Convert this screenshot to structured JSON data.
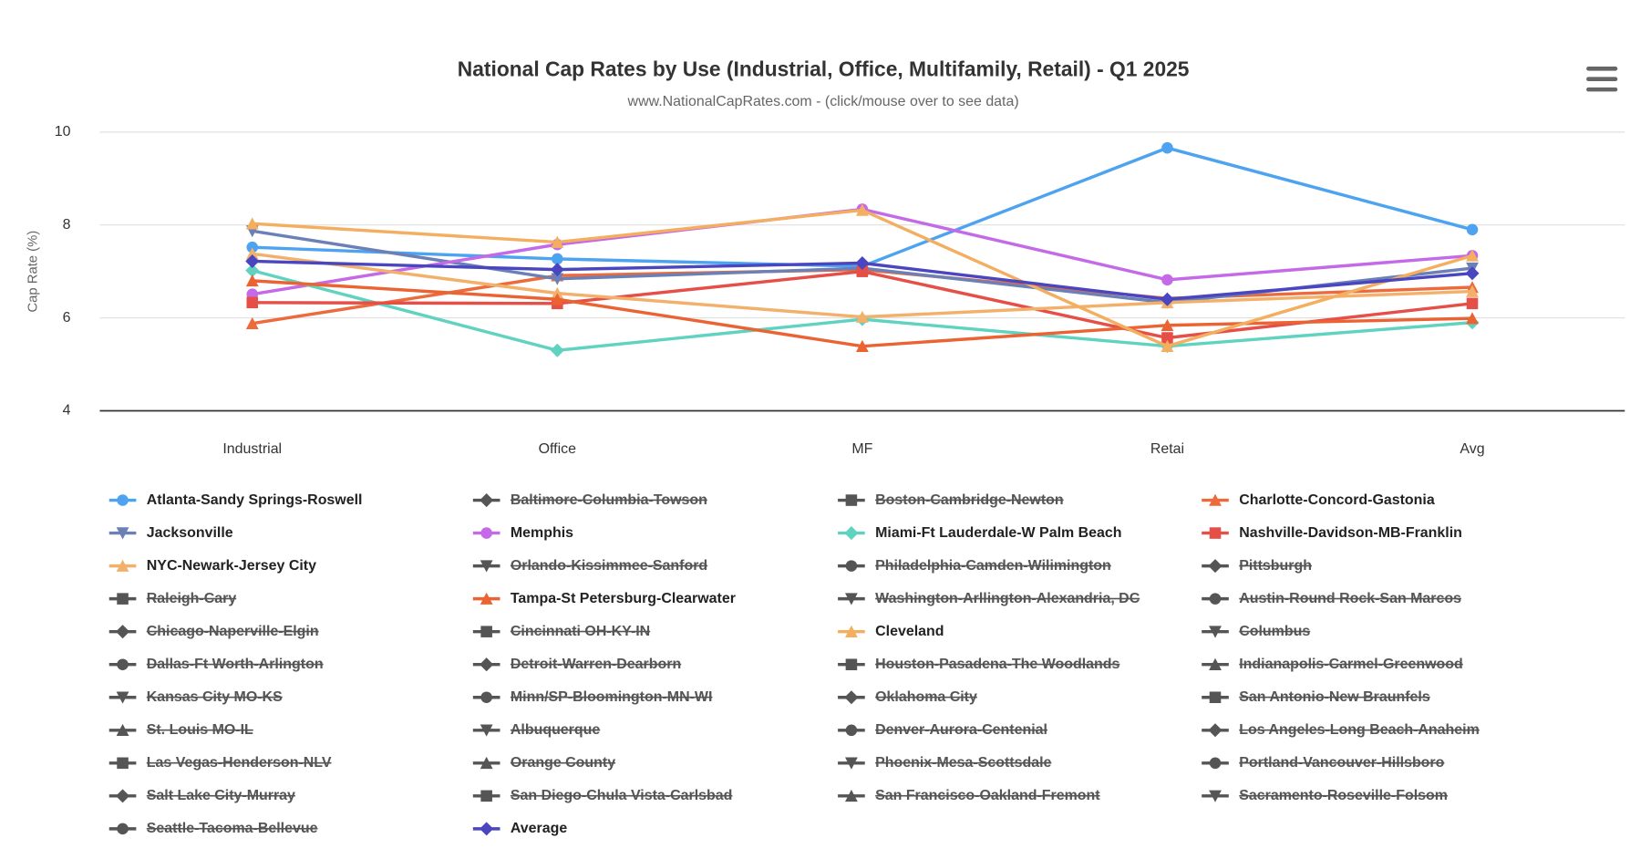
{
  "chart_data": {
    "type": "line",
    "title": "National Cap Rates by Use (Industrial, Office, Multifamily, Retail) - Q1 2025",
    "subtitle": "www.NationalCapRates.com - (click/mouse over to see data)",
    "y_label": "Cap Rate (%)",
    "categories": [
      "Industrial",
      "Office",
      "MF",
      "Retai",
      "Avg"
    ],
    "ylim": [
      4,
      10
    ],
    "yticks": [
      4,
      6,
      8,
      10
    ],
    "grid": true,
    "hidden_color": "#555555",
    "series": [
      {
        "name": "Atlanta-Sandy Springs-Roswell",
        "color": "#4da3f0",
        "values": [
          7.52,
          7.27,
          7.11,
          9.66,
          7.9
        ]
      },
      {
        "name": "Baltimore-Columbia-Towson",
        "visible": false
      },
      {
        "name": "Boston-Cambridge-Newton",
        "visible": false
      },
      {
        "name": "Charlotte-Concord-Gastonia",
        "color": "#ec6a3c",
        "values": [
          5.88,
          6.91,
          7.04,
          6.42,
          6.66
        ]
      },
      {
        "name": "Jacksonville",
        "color": "#6b80b6",
        "values": [
          7.87,
          6.84,
          7.07,
          6.33,
          7.07
        ]
      },
      {
        "name": "Memphis",
        "color": "#c46ae8",
        "values": [
          6.51,
          7.58,
          8.34,
          6.82,
          7.34
        ]
      },
      {
        "name": "Miami-Ft Lauderdale-W Palm Beach",
        "color": "#5fd3bf",
        "values": [
          7.02,
          5.3,
          5.97,
          5.39,
          5.9
        ]
      },
      {
        "name": "Nashville-Davidson-MB-Franklin",
        "color": "#e64f48",
        "values": [
          6.33,
          6.31,
          7.0,
          5.57,
          6.31
        ]
      },
      {
        "name": "NYC-Newark-Jersey City",
        "color": "#f2b06b",
        "values": [
          7.38,
          6.53,
          6.02,
          6.33,
          6.57
        ]
      },
      {
        "name": "Orlando-Kissimmee-Sanford",
        "visible": false
      },
      {
        "name": "Philadelphia-Camden-Wilimington",
        "visible": false
      },
      {
        "name": "Pittsburgh",
        "visible": false
      },
      {
        "name": "Raleigh-Cary",
        "visible": false
      },
      {
        "name": "Tampa-St Petersburg-Clearwater",
        "color": "#eb6333",
        "values": [
          6.8,
          6.4,
          5.39,
          5.84,
          5.99
        ]
      },
      {
        "name": "Washington-Arllington-Alexandria, DC",
        "visible": false
      },
      {
        "name": "Austin-Round Rock-San Marcos",
        "visible": false
      },
      {
        "name": "Chicago-Naperville-Elgin",
        "visible": false
      },
      {
        "name": "Cincinnati OH-KY-IN",
        "visible": false
      },
      {
        "name": "Cleveland",
        "color": "#f4ae60",
        "values": [
          8.03,
          7.63,
          8.32,
          5.39,
          7.34
        ]
      },
      {
        "name": "Columbus",
        "visible": false
      },
      {
        "name": "Dallas-Ft Worth-Arlington",
        "visible": false
      },
      {
        "name": "Detroit-Warren-Dearborn",
        "visible": false
      },
      {
        "name": "Houston-Pasadena-The Woodlands",
        "visible": false
      },
      {
        "name": "Indianapolis-Carmel-Greenwood",
        "visible": false
      },
      {
        "name": "Kansas City MO-KS",
        "visible": false
      },
      {
        "name": "Minn/SP-Bloomington-MN-WI",
        "visible": false
      },
      {
        "name": "Oklahoma City",
        "visible": false
      },
      {
        "name": "San Antonio-New Braunfels",
        "visible": false
      },
      {
        "name": "St. Louis MO-IL",
        "visible": false
      },
      {
        "name": "Albuquerque",
        "visible": false
      },
      {
        "name": "Denver-Aurora-Centenial",
        "visible": false
      },
      {
        "name": "Los Angeles-Long Beach-Anaheim",
        "visible": false
      },
      {
        "name": "Las Vegas-Henderson-NLV",
        "visible": false
      },
      {
        "name": "Orange County",
        "visible": false
      },
      {
        "name": "Phoenix-Mesa-Scottsdale",
        "visible": false
      },
      {
        "name": "Portland-Vancouver-Hillsboro",
        "visible": false
      },
      {
        "name": "Salt Lake City-Murray",
        "visible": false
      },
      {
        "name": "San Diego-Chula Vista-Carlsbad",
        "visible": false
      },
      {
        "name": "San Francisco-Oakland-Fremont",
        "visible": false
      },
      {
        "name": "Sacramento-Roseville-Folsom",
        "visible": false
      },
      {
        "name": "Seattle-Tacoma-Bellevue",
        "visible": false
      },
      {
        "name": "Average",
        "color": "#4a46c0",
        "values": [
          7.22,
          7.04,
          7.18,
          6.4,
          6.96
        ]
      }
    ]
  }
}
